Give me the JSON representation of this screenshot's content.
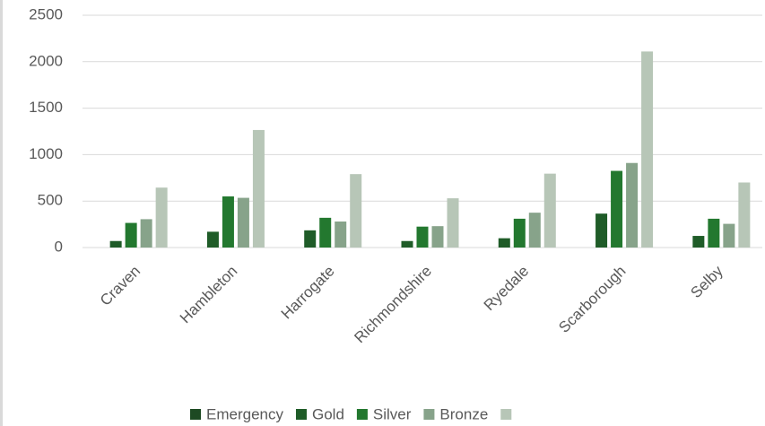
{
  "chart_data": {
    "type": "bar",
    "categories": [
      "Craven",
      "Hambleton",
      "Harrogate",
      "Richmondshire",
      "Ryedale",
      "Scarborough",
      "Selby"
    ],
    "series": [
      {
        "name": "Emergency",
        "color": "#1d4a23",
        "values": [
          0,
          0,
          0,
          0,
          0,
          0,
          0
        ]
      },
      {
        "name": "Gold",
        "color": "#1f5c28",
        "values": [
          70,
          170,
          185,
          70,
          100,
          365,
          125
        ]
      },
      {
        "name": "Silver",
        "color": "#23782f",
        "values": [
          265,
          550,
          320,
          225,
          310,
          825,
          310
        ]
      },
      {
        "name": "Bronze",
        "color": "#87a38a",
        "values": [
          305,
          535,
          280,
          230,
          375,
          910,
          255
        ]
      },
      {
        "color": "#b7c6b7",
        "values": [
          645,
          1265,
          790,
          530,
          795,
          2110,
          700
        ]
      }
    ],
    "ylim": [
      0,
      2500
    ],
    "yticks": [
      0,
      500,
      1000,
      1500,
      2000,
      2500
    ],
    "grid": true
  }
}
